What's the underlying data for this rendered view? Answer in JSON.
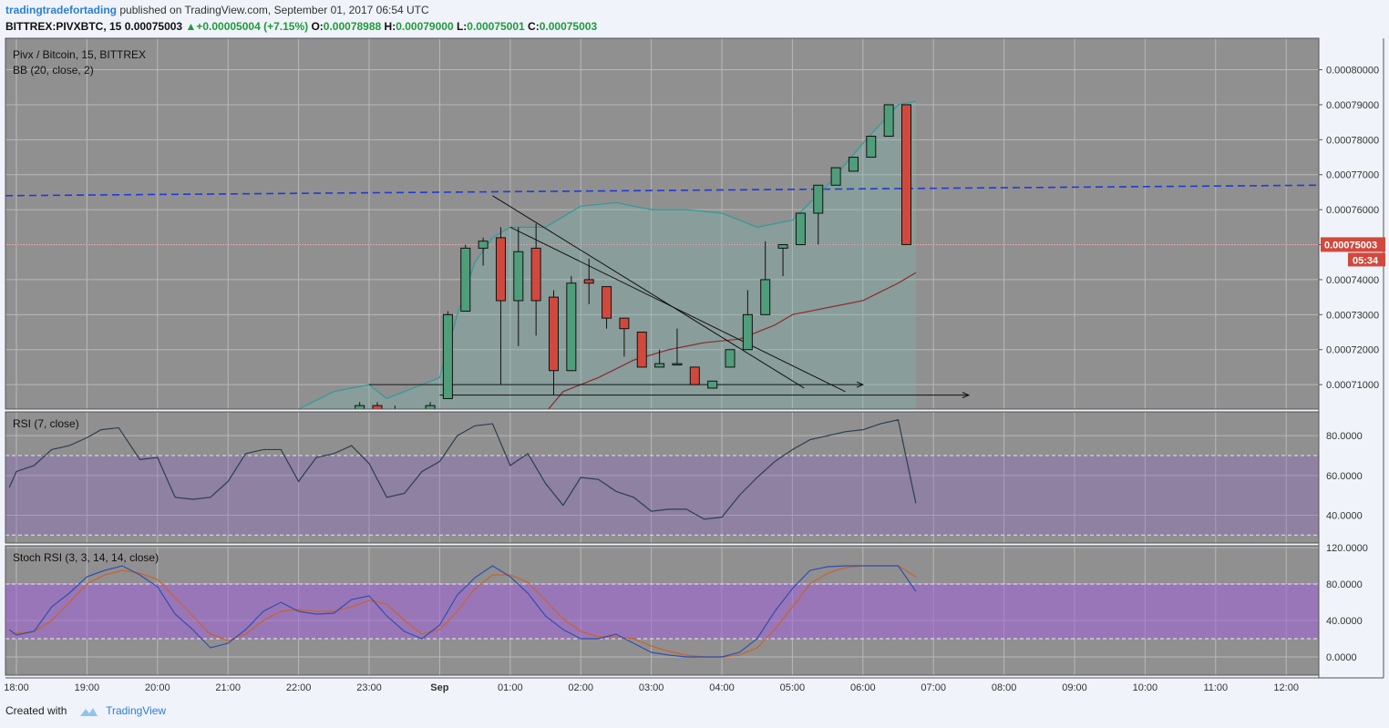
{
  "header": {
    "author": "tradingtradefortading",
    "published": "published on TradingView.com, September 01, 2017 06:54 UTC",
    "symbol": "BITTREX:PIVXBTC, 15",
    "last": "0.00075003",
    "change": "+0.00005004 (+7.15%)",
    "o_label": "O:",
    "o": "0.00078988",
    "h_label": "H:",
    "h": "0.00079000",
    "l_label": "L:",
    "l": "0.00075001",
    "c_label": "C:",
    "c": "0.00075003"
  },
  "colors": {
    "up": "#4f9e79",
    "down": "#d1493d",
    "background": "#909090",
    "bb_basis": "#8b2a2a",
    "bb_band": "#2e9c98",
    "trend": "#1f3bd6",
    "rsi_line": "#2c3e50",
    "stoch_k": "#2f4fb0",
    "stoch_d": "#c9632a"
  },
  "chart_data": [
    {
      "type": "candlestick",
      "title": "Pivx / Bitcoin, 15, BITTREX",
      "indicator": "BB (20, close, 2)",
      "x_tick_labels": [
        "18:00",
        "19:00",
        "20:00",
        "21:00",
        "22:00",
        "23:00",
        "Sep",
        "01:00",
        "02:00",
        "03:00",
        "04:00",
        "05:00",
        "06:00",
        "07:00",
        "08:00",
        "09:00",
        "10:00",
        "11:00",
        "12:00"
      ],
      "y_tick_labels": [
        "0.00080000",
        "0.00079000",
        "0.00078000",
        "0.00077000",
        "0.00076000",
        "0.00075000",
        "0.00074000",
        "0.00073000",
        "0.00072000",
        "0.00071000"
      ],
      "ylim": [
        0.000703,
        0.000809
      ],
      "last_price_label": "0.00075003",
      "countdown": "05:34",
      "candles": [
        {
          "t": "22:45",
          "o": 0.000702,
          "h": 0.000705,
          "l": 0.0007,
          "c": 0.000704
        },
        {
          "t": "23:00",
          "o": 0.000704,
          "h": 0.000705,
          "l": 0.0007,
          "c": 0.000702
        },
        {
          "t": "23:15",
          "o": 0.000703,
          "h": 0.000704,
          "l": 0.0007,
          "c": 0.000703
        },
        {
          "t": "23:45",
          "o": 0.000702,
          "h": 0.000705,
          "l": 0.0007,
          "c": 0.000704
        },
        {
          "t": "00:00",
          "o": 0.000706,
          "h": 0.000731,
          "l": 0.000706,
          "c": 0.00073
        },
        {
          "t": "00:15",
          "o": 0.000731,
          "h": 0.00075,
          "l": 0.000731,
          "c": 0.000749
        },
        {
          "t": "00:30",
          "o": 0.000749,
          "h": 0.000752,
          "l": 0.000744,
          "c": 0.000751
        },
        {
          "t": "00:45",
          "o": 0.000752,
          "h": 0.000755,
          "l": 0.00071,
          "c": 0.000734
        },
        {
          "t": "01:00",
          "o": 0.000734,
          "h": 0.000755,
          "l": 0.000721,
          "c": 0.000748
        },
        {
          "t": "01:15",
          "o": 0.000749,
          "h": 0.000756,
          "l": 0.000724,
          "c": 0.000734
        },
        {
          "t": "01:30",
          "o": 0.000735,
          "h": 0.000737,
          "l": 0.000707,
          "c": 0.000714
        },
        {
          "t": "01:45",
          "o": 0.000714,
          "h": 0.000741,
          "l": 0.000714,
          "c": 0.000739
        },
        {
          "t": "02:00",
          "o": 0.00074,
          "h": 0.000746,
          "l": 0.000733,
          "c": 0.000739
        },
        {
          "t": "02:15",
          "o": 0.000738,
          "h": 0.000738,
          "l": 0.000726,
          "c": 0.000729
        },
        {
          "t": "02:30",
          "o": 0.000729,
          "h": 0.000729,
          "l": 0.000718,
          "c": 0.000726
        },
        {
          "t": "02:45",
          "o": 0.000725,
          "h": 0.000725,
          "l": 0.000715,
          "c": 0.000715
        },
        {
          "t": "03:00",
          "o": 0.000715,
          "h": 0.00072,
          "l": 0.000715,
          "c": 0.000716
        },
        {
          "t": "03:15",
          "o": 0.000716,
          "h": 0.000726,
          "l": 0.000716,
          "c": 0.000716
        },
        {
          "t": "03:30",
          "o": 0.000715,
          "h": 0.000715,
          "l": 0.00071,
          "c": 0.00071
        },
        {
          "t": "03:45",
          "o": 0.000709,
          "h": 0.000711,
          "l": 0.000709,
          "c": 0.000711
        },
        {
          "t": "04:00",
          "o": 0.000715,
          "h": 0.00072,
          "l": 0.000715,
          "c": 0.00072
        },
        {
          "t": "04:15",
          "o": 0.00072,
          "h": 0.000737,
          "l": 0.00072,
          "c": 0.00073
        },
        {
          "t": "04:30",
          "o": 0.00073,
          "h": 0.000751,
          "l": 0.00073,
          "c": 0.00074
        },
        {
          "t": "04:45",
          "o": 0.000749,
          "h": 0.00075,
          "l": 0.000741,
          "c": 0.00075
        },
        {
          "t": "05:00",
          "o": 0.00075,
          "h": 0.000759,
          "l": 0.00075,
          "c": 0.000759
        },
        {
          "t": "05:15",
          "o": 0.000759,
          "h": 0.000767,
          "l": 0.00075,
          "c": 0.000767
        },
        {
          "t": "05:30",
          "o": 0.000767,
          "h": 0.000772,
          "l": 0.000767,
          "c": 0.000772
        },
        {
          "t": "05:45",
          "o": 0.000771,
          "h": 0.000775,
          "l": 0.000771,
          "c": 0.000775
        },
        {
          "t": "06:00",
          "o": 0.000775,
          "h": 0.000781,
          "l": 0.000775,
          "c": 0.000781
        },
        {
          "t": "06:15",
          "o": 0.000781,
          "h": 0.00079,
          "l": 0.000781,
          "c": 0.00079
        },
        {
          "t": "06:30",
          "o": 0.00079,
          "h": 0.00079,
          "l": 0.00075,
          "c": 0.00075003
        }
      ],
      "bb_upper": [
        [
          "22:00",
          0.000703
        ],
        [
          "22:30",
          0.000708
        ],
        [
          "23:00",
          0.00071
        ],
        [
          "23:15",
          0.000706
        ],
        [
          "23:45",
          0.00071
        ],
        [
          "00:00",
          0.000712
        ],
        [
          "00:15",
          0.00073
        ],
        [
          "00:30",
          0.000745
        ],
        [
          "00:45",
          0.000752
        ],
        [
          "01:00",
          0.000755
        ],
        [
          "01:30",
          0.000755
        ],
        [
          "02:00",
          0.000761
        ],
        [
          "02:30",
          0.000762
        ],
        [
          "03:00",
          0.00076
        ],
        [
          "03:30",
          0.00076
        ],
        [
          "04:00",
          0.000759
        ],
        [
          "04:30",
          0.000755
        ],
        [
          "05:00",
          0.000757
        ],
        [
          "05:30",
          0.000767
        ],
        [
          "06:00",
          0.000779
        ],
        [
          "06:30",
          0.00079
        ],
        [
          "06:45",
          0.000791
        ]
      ],
      "bb_basis": [
        [
          "01:30",
          0.000702
        ],
        [
          "01:45",
          0.000708
        ],
        [
          "02:15",
          0.000712
        ],
        [
          "02:45",
          0.000717
        ],
        [
          "03:15",
          0.00072
        ],
        [
          "03:45",
          0.000722
        ],
        [
          "04:15",
          0.000723
        ],
        [
          "04:45",
          0.000727
        ],
        [
          "05:00",
          0.00073
        ],
        [
          "05:30",
          0.000732
        ],
        [
          "06:00",
          0.000734
        ],
        [
          "06:30",
          0.000739
        ],
        [
          "06:45",
          0.000742
        ]
      ],
      "trendline": {
        "from": [
          "17:45",
          0.000764
        ],
        "to": [
          "12:30",
          0.000767
        ]
      },
      "annotations": [
        {
          "type": "line",
          "from": [
            "00:45",
            0.000764
          ],
          "to": [
            "05:10",
            0.000709
          ]
        },
        {
          "type": "line",
          "from": [
            "01:00",
            0.000755
          ],
          "to": [
            "05:45",
            0.000708
          ]
        },
        {
          "type": "arrow",
          "from": [
            "23:00",
            0.00071
          ],
          "to": [
            "06:00",
            0.00071
          ]
        },
        {
          "type": "arrow",
          "from": [
            "00:00",
            0.000707
          ],
          "to": [
            "07:30",
            0.000707
          ]
        }
      ]
    },
    {
      "type": "line",
      "title": "RSI (7, close)",
      "y_tick_labels": [
        "80.0000",
        "60.0000",
        "40.0000"
      ],
      "ylim": [
        26,
        92
      ],
      "band": [
        30,
        70
      ],
      "values": [
        [
          -0.1,
          54
        ],
        [
          0,
          62
        ],
        [
          0.25,
          65
        ],
        [
          0.5,
          73
        ],
        [
          0.75,
          75
        ],
        [
          1.0,
          79
        ],
        [
          1.2,
          83
        ],
        [
          1.45,
          84
        ],
        [
          1.75,
          68
        ],
        [
          2.0,
          69
        ],
        [
          2.25,
          49
        ],
        [
          2.5,
          48
        ],
        [
          2.75,
          49
        ],
        [
          3.0,
          57
        ],
        [
          3.25,
          71
        ],
        [
          3.5,
          73
        ],
        [
          3.75,
          73
        ],
        [
          4.0,
          57
        ],
        [
          4.25,
          69
        ],
        [
          4.5,
          71
        ],
        [
          4.75,
          75
        ],
        [
          5.0,
          66
        ],
        [
          5.25,
          49
        ],
        [
          5.5,
          51
        ],
        [
          5.75,
          62
        ],
        [
          6.0,
          67
        ],
        [
          6.25,
          80
        ],
        [
          6.5,
          85
        ],
        [
          6.75,
          86
        ],
        [
          7.0,
          65
        ],
        [
          7.25,
          71
        ],
        [
          7.5,
          56
        ],
        [
          7.75,
          45
        ],
        [
          8.0,
          59
        ],
        [
          8.25,
          58
        ],
        [
          8.5,
          52
        ],
        [
          8.75,
          49
        ],
        [
          9.0,
          42
        ],
        [
          9.25,
          43
        ],
        [
          9.5,
          43
        ],
        [
          9.75,
          38
        ],
        [
          10.0,
          39
        ],
        [
          10.25,
          50
        ],
        [
          10.5,
          59
        ],
        [
          10.75,
          67
        ],
        [
          11.0,
          73
        ],
        [
          11.25,
          78
        ],
        [
          11.5,
          80
        ],
        [
          11.75,
          82
        ],
        [
          12.0,
          83
        ],
        [
          12.25,
          86
        ],
        [
          12.5,
          88
        ],
        [
          12.75,
          46
        ]
      ]
    },
    {
      "type": "line",
      "title": "Stoch RSI (3, 3, 14, 14, close)",
      "y_tick_labels": [
        "120.0000",
        "80.0000",
        "40.0000",
        "0.0000"
      ],
      "ylim": [
        -20,
        122
      ],
      "band": [
        20,
        80
      ],
      "series": [
        {
          "values": [
            [
              -0.1,
              30
            ],
            [
              0,
              24
            ],
            [
              0.25,
              28
            ],
            [
              0.5,
              55
            ],
            [
              0.75,
              70
            ],
            [
              1.0,
              88
            ],
            [
              1.25,
              95
            ],
            [
              1.5,
              100
            ],
            [
              1.75,
              90
            ],
            [
              2.0,
              77
            ],
            [
              2.25,
              47
            ],
            [
              2.5,
              30
            ],
            [
              2.75,
              10
            ],
            [
              3.0,
              15
            ],
            [
              3.25,
              30
            ],
            [
              3.5,
              50
            ],
            [
              3.75,
              60
            ],
            [
              4.0,
              50
            ],
            [
              4.25,
              47
            ],
            [
              4.5,
              48
            ],
            [
              4.75,
              63
            ],
            [
              5.0,
              67
            ],
            [
              5.25,
              45
            ],
            [
              5.5,
              28
            ],
            [
              5.75,
              20
            ],
            [
              6.0,
              35
            ],
            [
              6.25,
              68
            ],
            [
              6.5,
              87
            ],
            [
              6.75,
              100
            ],
            [
              7.0,
              88
            ],
            [
              7.25,
              70
            ],
            [
              7.5,
              45
            ],
            [
              7.75,
              30
            ],
            [
              8.0,
              20
            ],
            [
              8.25,
              20
            ],
            [
              8.5,
              25
            ],
            [
              8.75,
              15
            ],
            [
              9.0,
              5
            ],
            [
              9.25,
              2
            ],
            [
              9.5,
              0
            ],
            [
              9.75,
              0
            ],
            [
              10.0,
              0
            ],
            [
              10.25,
              5
            ],
            [
              10.5,
              20
            ],
            [
              10.75,
              50
            ],
            [
              11.0,
              75
            ],
            [
              11.25,
              95
            ],
            [
              11.5,
              99
            ],
            [
              11.75,
              100
            ],
            [
              12.0,
              100
            ],
            [
              12.25,
              100
            ],
            [
              12.5,
              100
            ],
            [
              12.75,
              72
            ]
          ]
        },
        {
          "values": [
            [
              -0.1,
              25
            ],
            [
              0,
              26
            ],
            [
              0.25,
              28
            ],
            [
              0.5,
              40
            ],
            [
              0.75,
              60
            ],
            [
              1.0,
              80
            ],
            [
              1.25,
              90
            ],
            [
              1.5,
              95
            ],
            [
              1.75,
              92
            ],
            [
              2.0,
              85
            ],
            [
              2.25,
              65
            ],
            [
              2.5,
              45
            ],
            [
              2.75,
              25
            ],
            [
              3.0,
              18
            ],
            [
              3.25,
              25
            ],
            [
              3.5,
              40
            ],
            [
              3.75,
              50
            ],
            [
              4.0,
              52
            ],
            [
              4.25,
              50
            ],
            [
              4.5,
              50
            ],
            [
              4.75,
              55
            ],
            [
              5.0,
              62
            ],
            [
              5.25,
              58
            ],
            [
              5.5,
              40
            ],
            [
              5.75,
              25
            ],
            [
              6.0,
              30
            ],
            [
              6.25,
              50
            ],
            [
              6.5,
              75
            ],
            [
              6.75,
              90
            ],
            [
              7.0,
              90
            ],
            [
              7.25,
              82
            ],
            [
              7.5,
              62
            ],
            [
              7.75,
              42
            ],
            [
              8.0,
              28
            ],
            [
              8.25,
              22
            ],
            [
              8.5,
              22
            ],
            [
              8.75,
              20
            ],
            [
              9.0,
              12
            ],
            [
              9.25,
              6
            ],
            [
              9.5,
              2
            ],
            [
              9.75,
              0
            ],
            [
              10.0,
              0
            ],
            [
              10.25,
              2
            ],
            [
              10.5,
              10
            ],
            [
              10.75,
              30
            ],
            [
              11.0,
              55
            ],
            [
              11.25,
              80
            ],
            [
              11.5,
              92
            ],
            [
              11.75,
              98
            ],
            [
              12.0,
              100
            ],
            [
              12.25,
              100
            ],
            [
              12.5,
              100
            ],
            [
              12.75,
              88
            ]
          ]
        }
      ]
    }
  ],
  "footer": {
    "created_with": "Created with",
    "brand": "TradingView"
  }
}
